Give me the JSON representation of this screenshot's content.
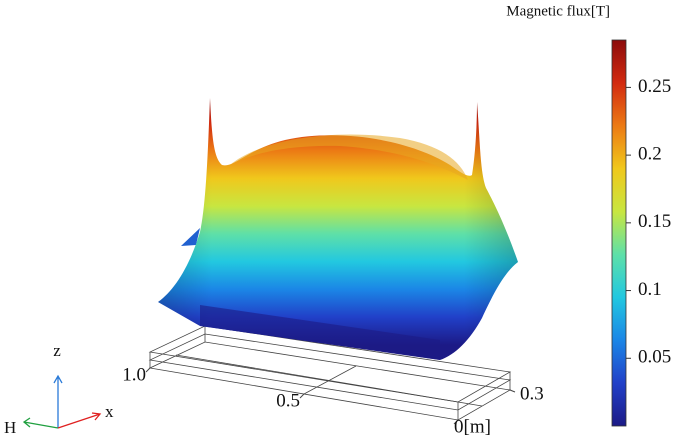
{
  "chart_data": {
    "type": "surface3d",
    "colorbar_title": "Magnetic flux[T]",
    "clim": [
      0,
      0.285
    ],
    "cticks": [
      0.05,
      0.1,
      0.15,
      0.2,
      0.25
    ],
    "colormap": [
      "#1c1a86",
      "#2140c8",
      "#1b86e6",
      "#22c8e0",
      "#5ee0a8",
      "#c8e640",
      "#f0c81c",
      "#ec7a14",
      "#d22a10",
      "#8c0c0c"
    ],
    "xlim": [
      0,
      1
    ],
    "xticks": [
      {
        "value": 0,
        "label": "0[m]"
      },
      0.5,
      {
        "value": 1,
        "label": "1.0"
      }
    ],
    "ylim": [
      0,
      0.3
    ],
    "yticks": [
      0.3
    ],
    "axis_labels": {
      "z": "z",
      "x": "x",
      "h": "H"
    }
  }
}
